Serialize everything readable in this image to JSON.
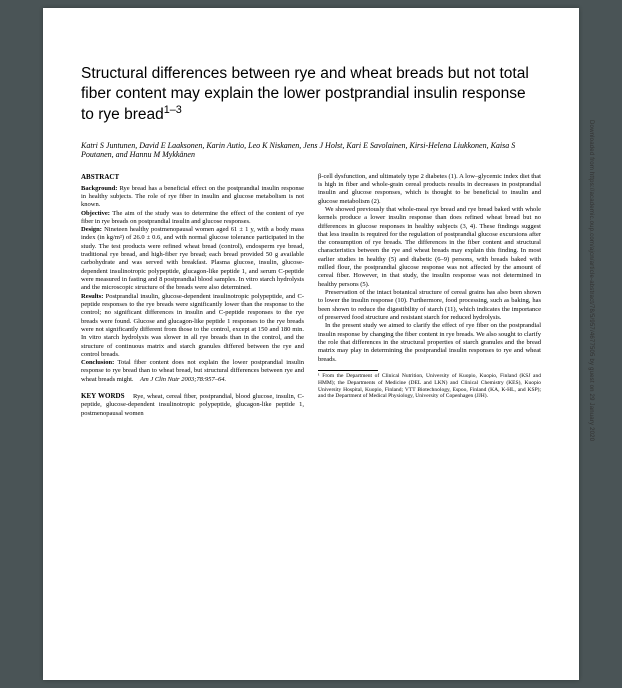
{
  "title": "Structural differences between rye and wheat breads but not total fiber content may explain the lower postprandial insulin response to rye bread",
  "title_sup": "1–3",
  "authors": "Katri S Juntunen, David E Laaksonen, Karin Autio, Leo K Niskanen, Jens J Holst, Kari E Savolainen, Kirsi-Helena Liukkonen, Kaisa S Poutanen, and Hannu M Mykkänen",
  "abstract_label": "ABSTRACT",
  "abstract": {
    "background_label": "Background:",
    "background": "Rye bread has a beneficial effect on the postprandial insulin response in healthy subjects. The role of rye fiber in insulin and glucose metabolism is not known.",
    "objective_label": "Objective:",
    "objective": "The aim of the study was to determine the effect of the content of rye fiber in rye breads on postprandial insulin and glucose responses.",
    "design_label": "Design:",
    "design": "Nineteen healthy postmenopausal women aged 61 ± 1 y, with a body mass index (in kg/m²) of 26.0 ± 0.6, and with normal glucose tolerance participated in the study. The test products were refined wheat bread (control), endosperm rye bread, traditional rye bread, and high-fiber rye bread; each bread provided 50 g available carbohydrate and was served with breakfast. Plasma glucose, insulin, glucose-dependent insulinotropic polypeptide, glucagon-like peptide 1, and serum C-peptide were measured in fasting and 8 postprandial blood samples. In vitro starch hydrolysis and the microscopic structure of the breads were also determined.",
    "results_label": "Results:",
    "results": "Postprandial insulin, glucose-dependent insulinotropic polypeptide, and C-peptide responses to the rye breads were significantly lower than the response to the control; no significant differences in insulin and C-peptide responses to the rye breads were found. Glucose and glucagon-like peptide 1 responses to the rye breads were not significantly different from those to the control, except at 150 and 180 min. In vitro starch hydrolysis was slower in all rye breads than in the control, and the structure of continuous matrix and starch granules differed between the rye and control breads.",
    "conclusion_label": "Conclusion:",
    "conclusion": "Total fiber content does not explain the lower postprandial insulin response to rye bread than to wheat bread, but structural differences between rye and wheat breads might.",
    "citation": "Am J Clin Nutr 2003;78:957–64."
  },
  "keywords_label": "KEY WORDS",
  "keywords": "Rye, wheat, cereal fiber, postprandial, blood glucose, insulin, C-peptide, glucose-dependent insulinotropic polypeptide, glucagon-like peptide 1, postmenopausal women",
  "intro": {
    "p1": "β-cell dysfunction, and ultimately type 2 diabetes (1). A low–glycemic index diet that is high in fiber and whole-grain cereal products results in decreases in postprandial insulin and glucose responses, which is thought to be beneficial to insulin and glucose metabolism (2).",
    "p2": "We showed previously that whole-meal rye bread and rye bread baked with whole kernels produce a lower insulin response than does refined wheat bread but no differences in glucose responses in healthy subjects (3, 4). These findings suggest that less insulin is required for the regulation of postprandial glucose excursions after the consumption of rye breads. The differences in the fiber content and structural characteristics between the rye and wheat breads may explain this finding. In most earlier studies in healthy (5) and diabetic (6–9) persons, with breads baked with milled flour, the postprandial glucose response was not affected by the amount of cereal fiber. However, in that study, the insulin response was not determined in healthy persons (5).",
    "p3": "Preservation of the intact botanical structure of cereal grains has also been shown to lower the insulin response (10). Furthermore, food processing, such as baking, has been shown to reduce the digestibility of starch (11), which indicates the importance of preserved food structure and resistant starch for reduced hydrolysis.",
    "p4": "In the present study we aimed to clarify the effect of rye fiber on the postprandial insulin response by changing the fiber content in rye breads. We also sought to clarify the role that differences in the structural properties of starch granules and the bread matrix may play in determining the postprandial insulin responses to rye and wheat breads."
  },
  "footnote": "¹ From the Department of Clinical Nutrition, University of Kuopio, Kuopio, Finland (KSJ and HMM); the Departments of Medicine (DEL and LKN) and Clinical Chemistry (KES), Kuopio University Hospital, Kuopio, Finland; VTT Biotechnology, Espoo, Finland (KA, K-HL, and KSP); and the Department of Medical Physiology, University of Copenhagen (JJH).",
  "side_text": "Downloaded from https://academic.oup.com/ajcn/article-abstract/78/5/957/4677505 by guest on 29 January 2020"
}
